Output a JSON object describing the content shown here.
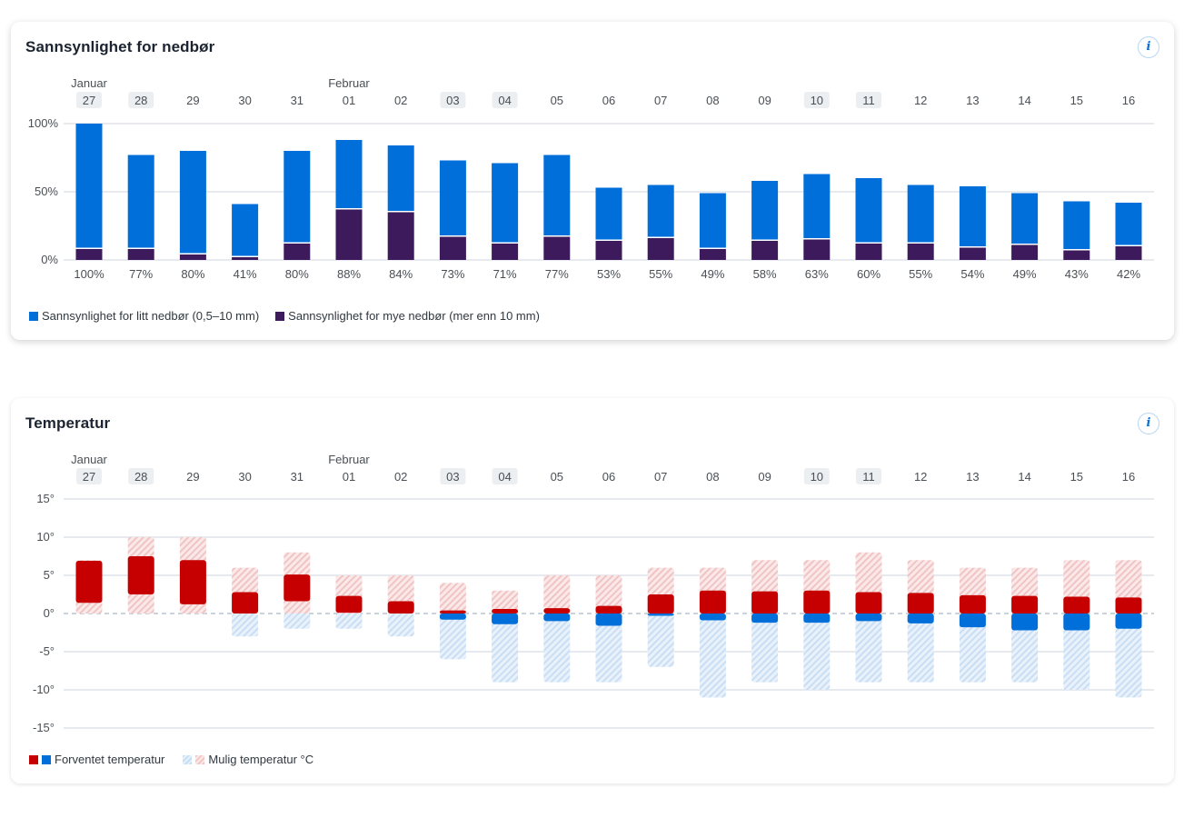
{
  "precip_card": {
    "title": "Sannsynlighet for nedbør",
    "info_label": "i",
    "legend": [
      {
        "label": "Sannsynlighet for litt nedbør (0,5–10 mm)",
        "color": "#006fd9"
      },
      {
        "label": "Sannsynlighet for mye nedbør (mer enn 10 mm)",
        "color": "#3d1a5b"
      }
    ]
  },
  "temp_card": {
    "title": "Temperatur",
    "info_label": "i",
    "legend": [
      {
        "label": "Forventet temperatur",
        "colors": [
          "#c60000",
          "#006fd9"
        ]
      },
      {
        "label": "Mulig temperatur °C",
        "colors": [
          "#c5ddf5",
          "#f2c5c5"
        ]
      }
    ]
  },
  "colors": {
    "light": "#006fd9",
    "heavy": "#3d1a5b",
    "warm": "#c60000",
    "cold": "#006fd9",
    "possible_warm": "#f2c5c5",
    "possible_cold": "#c5ddf5",
    "grid": "#dfe4ea",
    "weekend_bg": "#eceff1"
  },
  "days": [
    {
      "day": "27",
      "month": "Januar",
      "weekend": true
    },
    {
      "day": "28",
      "month": "",
      "weekend": true
    },
    {
      "day": "29",
      "month": "",
      "weekend": false
    },
    {
      "day": "30",
      "month": "",
      "weekend": false
    },
    {
      "day": "31",
      "month": "",
      "weekend": false
    },
    {
      "day": "01",
      "month": "Februar",
      "weekend": false
    },
    {
      "day": "02",
      "month": "",
      "weekend": false
    },
    {
      "day": "03",
      "month": "",
      "weekend": true
    },
    {
      "day": "04",
      "month": "",
      "weekend": true
    },
    {
      "day": "05",
      "month": "",
      "weekend": false
    },
    {
      "day": "06",
      "month": "",
      "weekend": false
    },
    {
      "day": "07",
      "month": "",
      "weekend": false
    },
    {
      "day": "08",
      "month": "",
      "weekend": false
    },
    {
      "day": "09",
      "month": "",
      "weekend": false
    },
    {
      "day": "10",
      "month": "",
      "weekend": true
    },
    {
      "day": "11",
      "month": "",
      "weekend": true
    },
    {
      "day": "12",
      "month": "",
      "weekend": false
    },
    {
      "day": "13",
      "month": "",
      "weekend": false
    },
    {
      "day": "14",
      "month": "",
      "weekend": false
    },
    {
      "day": "15",
      "month": "",
      "weekend": false
    },
    {
      "day": "16",
      "month": "",
      "weekend": false
    }
  ],
  "chart_data": [
    {
      "type": "bar",
      "title": "Sannsynlighet for nedbør",
      "categories": [
        "27",
        "28",
        "29",
        "30",
        "31",
        "01",
        "02",
        "03",
        "04",
        "05",
        "06",
        "07",
        "08",
        "09",
        "10",
        "11",
        "12",
        "13",
        "14",
        "15",
        "16"
      ],
      "yticks": [
        "0%",
        "50%",
        "100%"
      ],
      "ytick_values": [
        0,
        50,
        100
      ],
      "ylim": [
        0,
        100
      ],
      "grid": true,
      "legend_position": "bottom-left",
      "series": [
        {
          "name": "Sannsynlighet for litt nedbør (0,5–10 mm)",
          "total_values": [
            100,
            77,
            80,
            41,
            80,
            88,
            84,
            73,
            71,
            77,
            53,
            55,
            49,
            58,
            63,
            60,
            55,
            54,
            49,
            43,
            42
          ]
        },
        {
          "name": "Sannsynlighet for mye nedbør (mer enn 10 mm)",
          "values": [
            8,
            8,
            4,
            2,
            12,
            37,
            35,
            17,
            12,
            17,
            14,
            16,
            8,
            14,
            15,
            12,
            12,
            9,
            11,
            7,
            10
          ]
        }
      ],
      "data_labels": [
        "100%",
        "77%",
        "80%",
        "41%",
        "80%",
        "88%",
        "84%",
        "73%",
        "71%",
        "77%",
        "53%",
        "55%",
        "49%",
        "58%",
        "63%",
        "60%",
        "55%",
        "54%",
        "49%",
        "43%",
        "42%"
      ]
    },
    {
      "type": "bar",
      "subtype": "range",
      "title": "Temperatur",
      "categories": [
        "27",
        "28",
        "29",
        "30",
        "31",
        "01",
        "02",
        "03",
        "04",
        "05",
        "06",
        "07",
        "08",
        "09",
        "10",
        "11",
        "12",
        "13",
        "14",
        "15",
        "16"
      ],
      "yticks": [
        "15°",
        "10°",
        "5°",
        "0°",
        "-5°",
        "-10°",
        "-15°"
      ],
      "ytick_values": [
        15,
        10,
        5,
        0,
        -5,
        -10,
        -15
      ],
      "ylim": [
        -15,
        15
      ],
      "grid": true,
      "legend_position": "bottom-left",
      "series": [
        {
          "name": "Forventet temperatur",
          "min": [
            1.4,
            2.5,
            1.2,
            0,
            1.6,
            0.1,
            0,
            -0.8,
            -1.4,
            -1.0,
            -1.6,
            -0.3,
            -0.9,
            -1.2,
            -1.2,
            -1.0,
            -1.3,
            -1.8,
            -2.2,
            -2.2,
            -2.0
          ],
          "max": [
            6.9,
            7.5,
            7.0,
            2.8,
            5.1,
            2.3,
            1.6,
            0.4,
            0.6,
            0.7,
            1.0,
            2.5,
            3.0,
            2.9,
            3.0,
            2.8,
            2.7,
            2.4,
            2.3,
            2.2,
            2.1
          ]
        },
        {
          "name": "Mulig temperatur °C",
          "min": [
            0,
            0,
            0,
            -3,
            -2,
            -2,
            -3,
            -6,
            -9,
            -9,
            -9,
            -7,
            -11,
            -9,
            -10,
            -9,
            -9,
            -9,
            -9,
            -10,
            -11
          ],
          "max": [
            7,
            10,
            10,
            6,
            8,
            5,
            5,
            4,
            3,
            5,
            5,
            6,
            6,
            7,
            7,
            8,
            7,
            6,
            6,
            7,
            7
          ]
        }
      ]
    }
  ]
}
